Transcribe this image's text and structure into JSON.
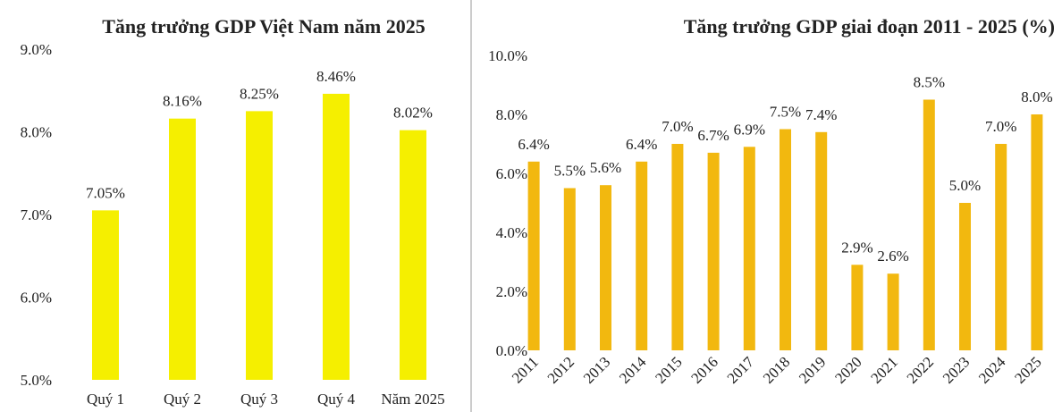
{
  "chart_data": [
    {
      "type": "bar",
      "title": "Tăng trưởng GDP Việt Nam năm 2025",
      "categories": [
        "Quý 1",
        "Quý 2",
        "Quý 3",
        "Quý 4",
        "Năm 2025"
      ],
      "values": [
        7.05,
        8.16,
        8.25,
        8.46,
        8.02
      ],
      "value_labels": [
        "7.05%",
        "8.16%",
        "8.25%",
        "8.46%",
        "8.02%"
      ],
      "color": "#f5ef00",
      "ylim": [
        5,
        9
      ],
      "yticks": [
        {
          "value": 5,
          "label": "5.0%"
        },
        {
          "value": 6,
          "label": "6.0%"
        },
        {
          "value": 7,
          "label": "7.0%"
        },
        {
          "value": 8,
          "label": "8.0%"
        },
        {
          "value": 9,
          "label": "9.0%"
        }
      ]
    },
    {
      "type": "bar",
      "title": "Tăng trưởng GDP giai đoạn 2011 - 2025 (%)",
      "categories": [
        "2011",
        "2012",
        "2013",
        "2014",
        "2015",
        "2016",
        "2017",
        "2018",
        "2019",
        "2020",
        "2021",
        "2022",
        "2023",
        "2024",
        "2025"
      ],
      "values": [
        6.4,
        5.5,
        5.6,
        6.4,
        7.0,
        6.7,
        6.9,
        7.5,
        7.4,
        2.9,
        2.6,
        8.5,
        5.0,
        7.0,
        8.0
      ],
      "value_labels": [
        "6.4%",
        "5.5%",
        "5.6%",
        "6.4%",
        "7.0%",
        "6.7%",
        "6.9%",
        "7.5%",
        "7.4%",
        "2.9%",
        "2.6%",
        "8.5%",
        "5.0%",
        "7.0%",
        "8.0%"
      ],
      "color": "#f2b80f",
      "ylim": [
        0,
        10
      ],
      "yticks": [
        {
          "value": 0,
          "label": "0.0%"
        },
        {
          "value": 2,
          "label": "2.0%"
        },
        {
          "value": 4,
          "label": "4.0%"
        },
        {
          "value": 6,
          "label": "6.0%"
        },
        {
          "value": 8,
          "label": "8.0%"
        },
        {
          "value": 10,
          "label": "10.0%"
        }
      ]
    }
  ]
}
